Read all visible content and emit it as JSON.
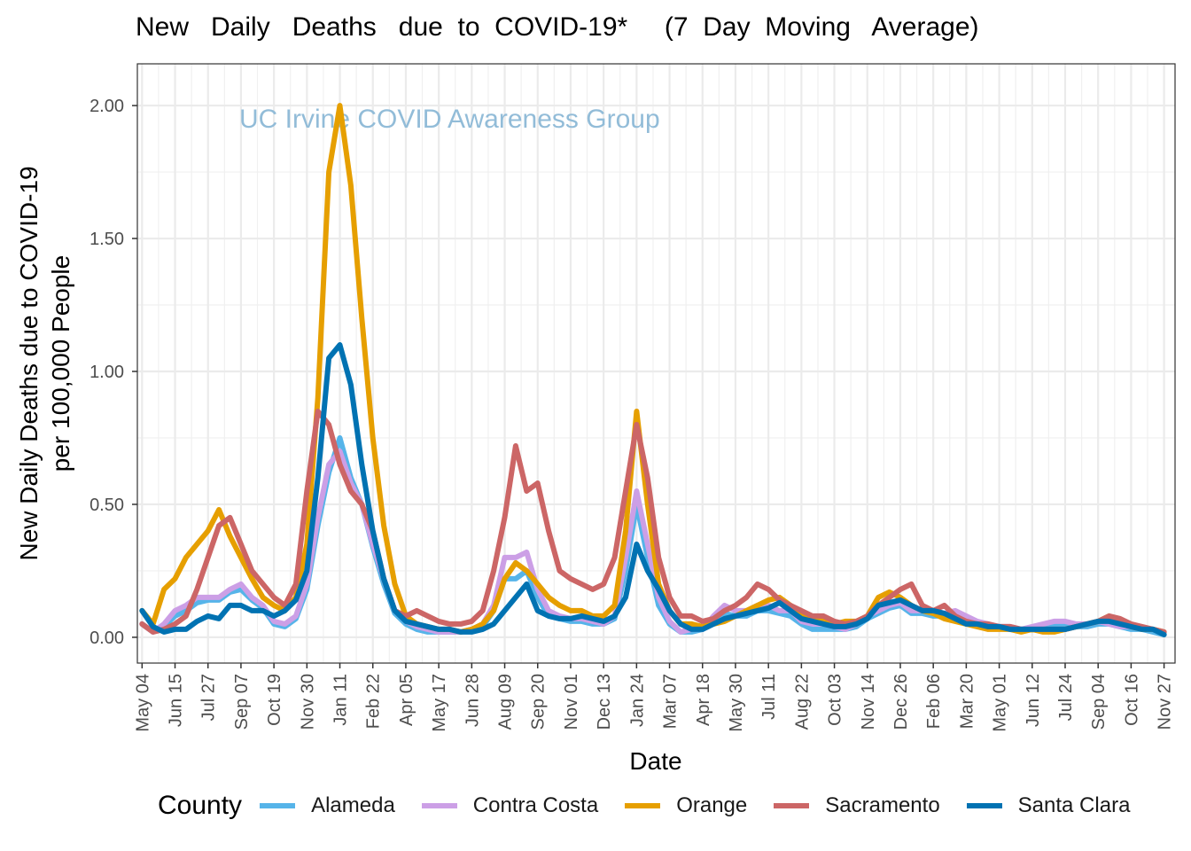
{
  "title": "New   Daily   Deaths   due  to  COVID-19*     (7  Day  Moving   Average)",
  "chart_data": {
    "type": "line",
    "title": "New   Daily   Deaths   due  to  COVID-19*     (7  Day  Moving   Average)",
    "xlabel": "Date",
    "ylabel": [
      "New Daily Deaths due to COVID-19",
      "per 100,000 People"
    ],
    "watermark": "UC Irvine COVID Awareness Group",
    "xlim": [
      "2020-04-28",
      "2023-12-11"
    ],
    "ylim": [
      -0.097,
      2.157
    ],
    "grid": true,
    "legend_position": "bottom",
    "legend_title": "County",
    "x_ticks": [
      {
        "date": "2020-05-04",
        "label": "May 04"
      },
      {
        "date": "2020-06-15",
        "label": "Jun 15"
      },
      {
        "date": "2020-07-27",
        "label": "Jul 27"
      },
      {
        "date": "2020-09-07",
        "label": "Sep 07"
      },
      {
        "date": "2020-10-19",
        "label": "Oct 19"
      },
      {
        "date": "2020-11-30",
        "label": "Nov 30"
      },
      {
        "date": "2021-01-11",
        "label": "Jan 11"
      },
      {
        "date": "2021-02-22",
        "label": "Feb 22"
      },
      {
        "date": "2021-04-05",
        "label": "Apr 05"
      },
      {
        "date": "2021-05-17",
        "label": "May 17"
      },
      {
        "date": "2021-06-28",
        "label": "Jun 28"
      },
      {
        "date": "2021-08-09",
        "label": "Aug 09"
      },
      {
        "date": "2021-09-20",
        "label": "Sep 20"
      },
      {
        "date": "2021-11-01",
        "label": "Nov 01"
      },
      {
        "date": "2021-12-13",
        "label": "Dec 13"
      },
      {
        "date": "2022-01-24",
        "label": "Jan 24"
      },
      {
        "date": "2022-03-07",
        "label": "Mar 07"
      },
      {
        "date": "2022-04-18",
        "label": "Apr 18"
      },
      {
        "date": "2022-05-30",
        "label": "May 30"
      },
      {
        "date": "2022-07-11",
        "label": "Jul 11"
      },
      {
        "date": "2022-08-22",
        "label": "Aug 22"
      },
      {
        "date": "2022-10-03",
        "label": "Oct 03"
      },
      {
        "date": "2022-11-14",
        "label": "Nov 14"
      },
      {
        "date": "2022-12-26",
        "label": "Dec 26"
      },
      {
        "date": "2023-02-06",
        "label": "Feb 06"
      },
      {
        "date": "2023-03-20",
        "label": "Mar 20"
      },
      {
        "date": "2023-05-01",
        "label": "May 01"
      },
      {
        "date": "2023-06-12",
        "label": "Jun 12"
      },
      {
        "date": "2023-07-24",
        "label": "Jul 24"
      },
      {
        "date": "2023-09-04",
        "label": "Sep 04"
      },
      {
        "date": "2023-10-16",
        "label": "Oct 16"
      },
      {
        "date": "2023-11-27",
        "label": "Nov 27"
      }
    ],
    "y_ticks": [
      {
        "value": 0,
        "label": "0.00"
      },
      {
        "value": 0.5,
        "label": "0.50"
      },
      {
        "value": 1,
        "label": "1.00"
      },
      {
        "value": 1.5,
        "label": "1.50"
      },
      {
        "value": 2,
        "label": "2.00"
      }
    ],
    "x": [
      "2020-05-04",
      "2020-05-18",
      "2020-06-01",
      "2020-06-15",
      "2020-06-29",
      "2020-07-13",
      "2020-07-27",
      "2020-08-10",
      "2020-08-24",
      "2020-09-07",
      "2020-09-21",
      "2020-10-05",
      "2020-10-19",
      "2020-11-02",
      "2020-11-16",
      "2020-11-30",
      "2020-12-14",
      "2020-12-28",
      "2021-01-11",
      "2021-01-25",
      "2021-02-08",
      "2021-02-22",
      "2021-03-08",
      "2021-03-22",
      "2021-04-05",
      "2021-04-19",
      "2021-05-03",
      "2021-05-17",
      "2021-05-31",
      "2021-06-14",
      "2021-06-28",
      "2021-07-12",
      "2021-07-26",
      "2021-08-09",
      "2021-08-23",
      "2021-09-06",
      "2021-09-20",
      "2021-10-04",
      "2021-10-18",
      "2021-11-01",
      "2021-11-15",
      "2021-11-29",
      "2021-12-13",
      "2021-12-27",
      "2022-01-10",
      "2022-01-24",
      "2022-02-07",
      "2022-02-21",
      "2022-03-07",
      "2022-03-21",
      "2022-04-04",
      "2022-04-18",
      "2022-05-02",
      "2022-05-16",
      "2022-05-30",
      "2022-06-13",
      "2022-06-27",
      "2022-07-11",
      "2022-07-25",
      "2022-08-08",
      "2022-08-22",
      "2022-09-05",
      "2022-09-19",
      "2022-10-03",
      "2022-10-17",
      "2022-10-31",
      "2022-11-14",
      "2022-11-28",
      "2022-12-12",
      "2022-12-26",
      "2023-01-09",
      "2023-01-23",
      "2023-02-06",
      "2023-02-20",
      "2023-03-06",
      "2023-03-20",
      "2023-04-03",
      "2023-04-17",
      "2023-05-01",
      "2023-05-15",
      "2023-05-29",
      "2023-06-12",
      "2023-06-26",
      "2023-07-10",
      "2023-07-24",
      "2023-08-07",
      "2023-08-21",
      "2023-09-04",
      "2023-09-18",
      "2023-10-02",
      "2023-10-16",
      "2023-10-30",
      "2023-11-13",
      "2023-11-27"
    ],
    "series": [
      {
        "name": "Alameda",
        "color": "#56B4E9",
        "values": [
          0.05,
          0.02,
          0.04,
          0.08,
          0.1,
          0.13,
          0.14,
          0.14,
          0.17,
          0.18,
          0.14,
          0.11,
          0.05,
          0.04,
          0.07,
          0.18,
          0.42,
          0.62,
          0.75,
          0.6,
          0.5,
          0.34,
          0.2,
          0.09,
          0.05,
          0.03,
          0.02,
          0.02,
          0.02,
          0.02,
          0.03,
          0.04,
          0.1,
          0.22,
          0.22,
          0.25,
          0.15,
          0.08,
          0.07,
          0.06,
          0.06,
          0.05,
          0.05,
          0.07,
          0.25,
          0.5,
          0.3,
          0.12,
          0.05,
          0.02,
          0.02,
          0.03,
          0.06,
          0.09,
          0.08,
          0.08,
          0.1,
          0.1,
          0.09,
          0.08,
          0.05,
          0.03,
          0.03,
          0.03,
          0.03,
          0.04,
          0.07,
          0.09,
          0.11,
          0.12,
          0.09,
          0.09,
          0.08,
          0.08,
          0.07,
          0.06,
          0.05,
          0.04,
          0.04,
          0.03,
          0.03,
          0.03,
          0.04,
          0.04,
          0.05,
          0.04,
          0.04,
          0.05,
          0.05,
          0.04,
          0.03,
          0.03,
          0.02,
          0.01
        ]
      },
      {
        "name": "Contra Costa",
        "color": "#CC9FE6",
        "values": [
          0.05,
          0.02,
          0.05,
          0.1,
          0.12,
          0.15,
          0.15,
          0.15,
          0.18,
          0.2,
          0.15,
          0.12,
          0.06,
          0.05,
          0.08,
          0.2,
          0.45,
          0.65,
          0.7,
          0.58,
          0.5,
          0.35,
          0.22,
          0.1,
          0.06,
          0.04,
          0.03,
          0.02,
          0.02,
          0.02,
          0.03,
          0.05,
          0.12,
          0.3,
          0.3,
          0.32,
          0.18,
          0.1,
          0.08,
          0.07,
          0.07,
          0.06,
          0.05,
          0.08,
          0.3,
          0.55,
          0.35,
          0.15,
          0.06,
          0.02,
          0.03,
          0.03,
          0.08,
          0.12,
          0.1,
          0.1,
          0.12,
          0.12,
          0.1,
          0.1,
          0.06,
          0.05,
          0.05,
          0.04,
          0.03,
          0.05,
          0.08,
          0.1,
          0.12,
          0.13,
          0.1,
          0.1,
          0.1,
          0.09,
          0.1,
          0.08,
          0.06,
          0.05,
          0.04,
          0.04,
          0.03,
          0.04,
          0.05,
          0.06,
          0.06,
          0.05,
          0.05,
          0.06,
          0.05,
          0.04,
          0.04,
          0.03,
          0.03,
          0.02
        ]
      },
      {
        "name": "Orange",
        "color": "#E69F00",
        "values": [
          0.1,
          0.05,
          0.18,
          0.22,
          0.3,
          0.35,
          0.4,
          0.48,
          0.38,
          0.3,
          0.22,
          0.15,
          0.12,
          0.1,
          0.15,
          0.35,
          0.9,
          1.75,
          2.0,
          1.7,
          1.2,
          0.75,
          0.42,
          0.2,
          0.08,
          0.05,
          0.04,
          0.03,
          0.03,
          0.02,
          0.03,
          0.05,
          0.1,
          0.22,
          0.28,
          0.25,
          0.2,
          0.15,
          0.12,
          0.1,
          0.1,
          0.08,
          0.08,
          0.12,
          0.4,
          0.85,
          0.5,
          0.2,
          0.1,
          0.05,
          0.05,
          0.04,
          0.05,
          0.06,
          0.08,
          0.1,
          0.12,
          0.14,
          0.15,
          0.12,
          0.08,
          0.07,
          0.06,
          0.05,
          0.06,
          0.06,
          0.08,
          0.15,
          0.17,
          0.15,
          0.12,
          0.1,
          0.09,
          0.07,
          0.06,
          0.05,
          0.04,
          0.03,
          0.03,
          0.03,
          0.02,
          0.03,
          0.02,
          0.02,
          0.03,
          0.04,
          0.05,
          0.06,
          0.08,
          0.06,
          0.04,
          0.03,
          0.03,
          0.02
        ]
      },
      {
        "name": "Sacramento",
        "color": "#CC6666",
        "values": [
          0.05,
          0.02,
          0.03,
          0.05,
          0.08,
          0.18,
          0.3,
          0.42,
          0.45,
          0.35,
          0.25,
          0.2,
          0.15,
          0.12,
          0.2,
          0.55,
          0.85,
          0.8,
          0.65,
          0.55,
          0.5,
          0.4,
          0.22,
          0.1,
          0.08,
          0.1,
          0.08,
          0.06,
          0.05,
          0.05,
          0.06,
          0.1,
          0.25,
          0.45,
          0.72,
          0.55,
          0.58,
          0.4,
          0.25,
          0.22,
          0.2,
          0.18,
          0.2,
          0.3,
          0.55,
          0.8,
          0.6,
          0.3,
          0.15,
          0.08,
          0.08,
          0.06,
          0.07,
          0.1,
          0.12,
          0.15,
          0.2,
          0.18,
          0.14,
          0.12,
          0.1,
          0.08,
          0.08,
          0.06,
          0.05,
          0.06,
          0.08,
          0.12,
          0.15,
          0.18,
          0.2,
          0.12,
          0.1,
          0.12,
          0.08,
          0.06,
          0.05,
          0.05,
          0.04,
          0.04,
          0.03,
          0.03,
          0.03,
          0.03,
          0.03,
          0.04,
          0.05,
          0.06,
          0.08,
          0.07,
          0.05,
          0.04,
          0.03,
          0.02
        ]
      },
      {
        "name": "Santa Clara",
        "color": "#0072B2",
        "values": [
          0.1,
          0.04,
          0.02,
          0.03,
          0.03,
          0.06,
          0.08,
          0.07,
          0.12,
          0.12,
          0.1,
          0.1,
          0.08,
          0.1,
          0.14,
          0.25,
          0.6,
          1.05,
          1.1,
          0.95,
          0.65,
          0.4,
          0.22,
          0.1,
          0.06,
          0.05,
          0.04,
          0.03,
          0.03,
          0.02,
          0.02,
          0.03,
          0.05,
          0.1,
          0.15,
          0.2,
          0.1,
          0.08,
          0.07,
          0.07,
          0.08,
          0.07,
          0.06,
          0.08,
          0.15,
          0.35,
          0.25,
          0.18,
          0.1,
          0.05,
          0.03,
          0.03,
          0.05,
          0.07,
          0.08,
          0.09,
          0.1,
          0.11,
          0.13,
          0.1,
          0.07,
          0.06,
          0.05,
          0.04,
          0.04,
          0.05,
          0.07,
          0.12,
          0.13,
          0.14,
          0.12,
          0.1,
          0.1,
          0.09,
          0.07,
          0.05,
          0.05,
          0.04,
          0.04,
          0.03,
          0.03,
          0.03,
          0.03,
          0.03,
          0.03,
          0.04,
          0.05,
          0.06,
          0.06,
          0.05,
          0.04,
          0.03,
          0.03,
          0.01
        ]
      }
    ]
  }
}
